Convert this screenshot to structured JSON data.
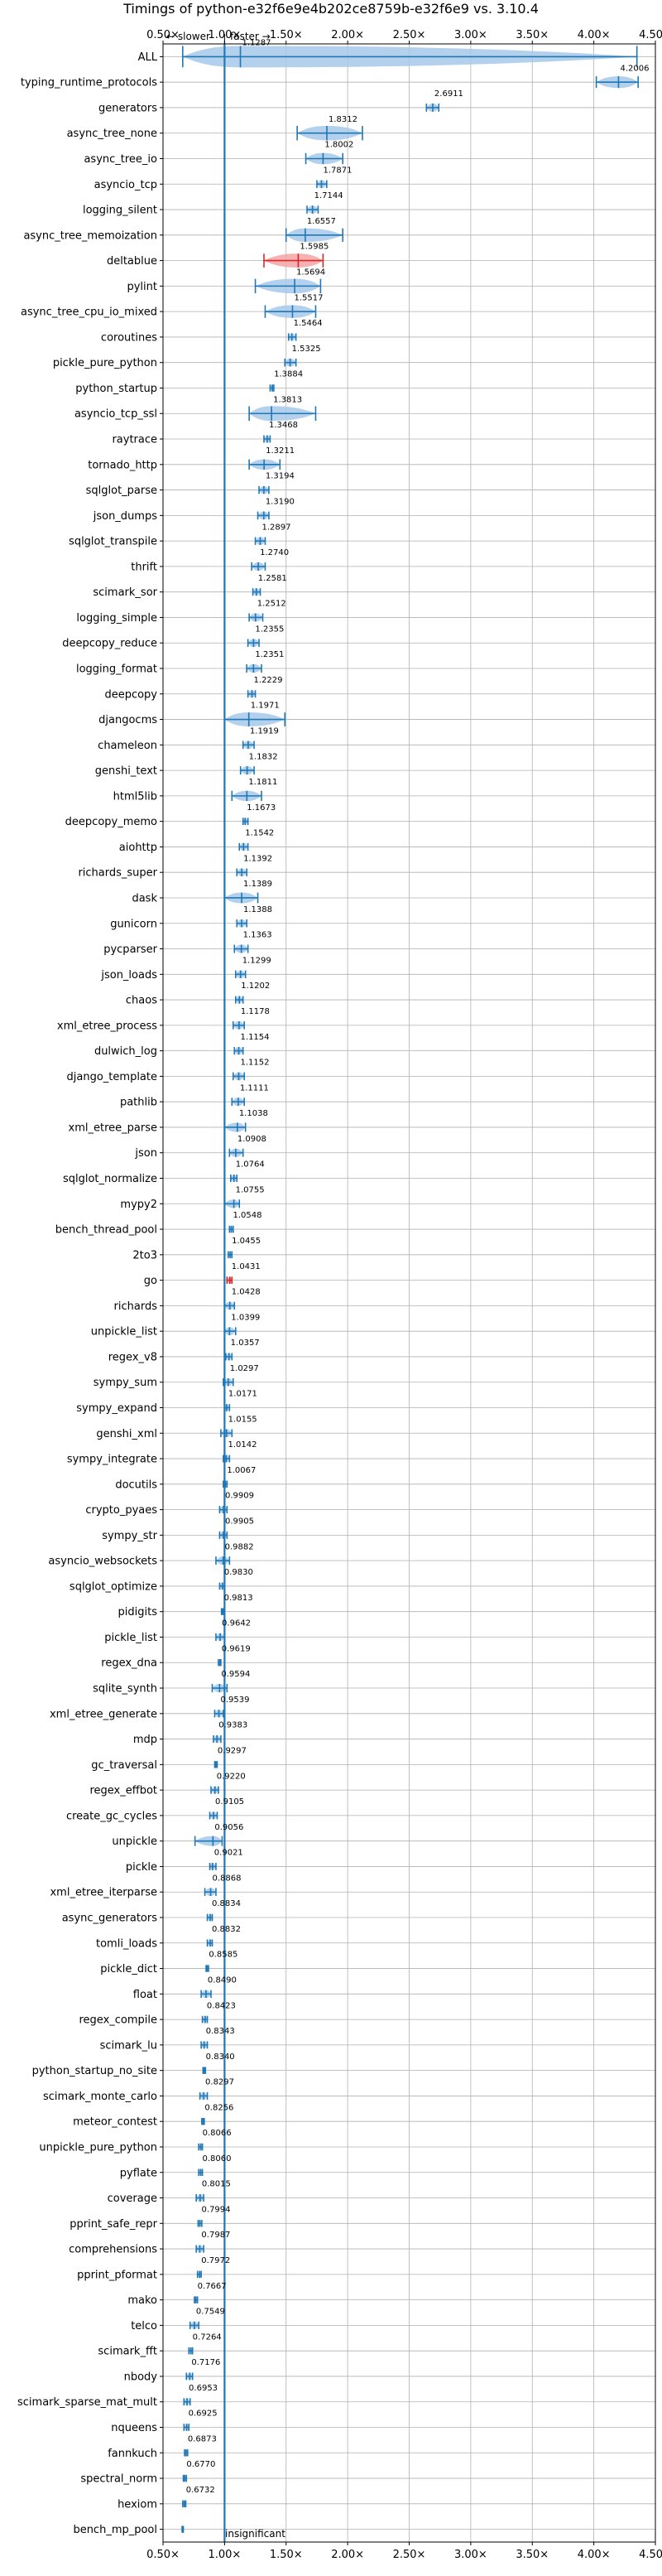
{
  "chart_data": {
    "type": "violin",
    "title": "Timings of python-e32f6e9e4b202ce8759b-e32f6e9 vs. 3.10.4",
    "xlabel": "",
    "ylabel": "",
    "xlim": [
      0.5,
      4.5
    ],
    "x_ticks": [
      0.5,
      1.0,
      1.5,
      2.0,
      2.5,
      3.0,
      3.5,
      4.0,
      4.5
    ],
    "x_tick_labels": [
      "0.50×",
      "1.00×",
      "1.50×",
      "2.00×",
      "2.50×",
      "3.00×",
      "3.50×",
      "4.00×",
      "4.50×"
    ],
    "reference_line": 1.0,
    "direction_labels": {
      "slower": "← slower",
      "faster": "faster →"
    },
    "insignificant_label": "insignificant",
    "grid": true,
    "colors": {
      "faster": "#1f77b4",
      "slower": "#d62728",
      "violin_fill": "#a6c8ea",
      "red_fill": "#f4a3a4"
    },
    "benchmarks": [
      {
        "name": "ALL",
        "median": 1.1287,
        "min": 0.66,
        "max": 4.35,
        "label": "1.1287"
      },
      {
        "name": "typing_runtime_protocols",
        "median": 4.2006,
        "min": 4.02,
        "max": 4.36,
        "label": "4.2006"
      },
      {
        "name": "generators",
        "median": 2.6911,
        "min": 2.64,
        "max": 2.74,
        "label": "2.6911"
      },
      {
        "name": "async_tree_none",
        "median": 1.8312,
        "min": 1.59,
        "max": 2.12,
        "label": "1.8312"
      },
      {
        "name": "async_tree_io",
        "median": 1.8002,
        "min": 1.66,
        "max": 1.96,
        "label": "1.8002"
      },
      {
        "name": "asyncio_tcp",
        "median": 1.7871,
        "min": 1.75,
        "max": 1.83,
        "label": "1.7871"
      },
      {
        "name": "logging_silent",
        "median": 1.7144,
        "min": 1.67,
        "max": 1.76,
        "label": "1.7144"
      },
      {
        "name": "async_tree_memoization",
        "median": 1.6557,
        "min": 1.5,
        "max": 1.96,
        "label": "1.6557"
      },
      {
        "name": "deltablue",
        "median": 1.5985,
        "min": 1.32,
        "max": 1.8,
        "label": "1.5985",
        "color": "red"
      },
      {
        "name": "pylint",
        "median": 1.5694,
        "min": 1.25,
        "max": 1.78,
        "label": "1.5694"
      },
      {
        "name": "async_tree_cpu_io_mixed",
        "median": 1.5517,
        "min": 1.33,
        "max": 1.74,
        "label": "1.5517"
      },
      {
        "name": "coroutines",
        "median": 1.5464,
        "min": 1.52,
        "max": 1.58,
        "label": "1.5464"
      },
      {
        "name": "pickle_pure_python",
        "median": 1.5325,
        "min": 1.49,
        "max": 1.58,
        "label": "1.5325"
      },
      {
        "name": "python_startup",
        "median": 1.3884,
        "min": 1.37,
        "max": 1.4,
        "label": "1.3884"
      },
      {
        "name": "asyncio_tcp_ssl",
        "median": 1.3813,
        "min": 1.2,
        "max": 1.74,
        "label": "1.3813"
      },
      {
        "name": "raytrace",
        "median": 1.3468,
        "min": 1.32,
        "max": 1.37,
        "label": "1.3468"
      },
      {
        "name": "tornado_http",
        "median": 1.3211,
        "min": 1.2,
        "max": 1.45,
        "label": "1.3211"
      },
      {
        "name": "sqlglot_parse",
        "median": 1.3194,
        "min": 1.28,
        "max": 1.36,
        "label": "1.3194"
      },
      {
        "name": "json_dumps",
        "median": 1.319,
        "min": 1.27,
        "max": 1.36,
        "label": "1.3190"
      },
      {
        "name": "sqlglot_transpile",
        "median": 1.2897,
        "min": 1.25,
        "max": 1.33,
        "label": "1.2897"
      },
      {
        "name": "thrift",
        "median": 1.274,
        "min": 1.22,
        "max": 1.33,
        "label": "1.2740"
      },
      {
        "name": "scimark_sor",
        "median": 1.2581,
        "min": 1.23,
        "max": 1.29,
        "label": "1.2581"
      },
      {
        "name": "logging_simple",
        "median": 1.2512,
        "min": 1.2,
        "max": 1.31,
        "label": "1.2512"
      },
      {
        "name": "deepcopy_reduce",
        "median": 1.2355,
        "min": 1.19,
        "max": 1.28,
        "label": "1.2355"
      },
      {
        "name": "logging_format",
        "median": 1.2351,
        "min": 1.18,
        "max": 1.3,
        "label": "1.2351"
      },
      {
        "name": "deepcopy",
        "median": 1.2229,
        "min": 1.19,
        "max": 1.25,
        "label": "1.2229"
      },
      {
        "name": "djangocms",
        "median": 1.1971,
        "min": 1.0,
        "max": 1.49,
        "label": "1.1971"
      },
      {
        "name": "chameleon",
        "median": 1.1919,
        "min": 1.15,
        "max": 1.24,
        "label": "1.1919"
      },
      {
        "name": "genshi_text",
        "median": 1.1832,
        "min": 1.13,
        "max": 1.24,
        "label": "1.1832"
      },
      {
        "name": "html5lib",
        "median": 1.1811,
        "min": 1.06,
        "max": 1.3,
        "label": "1.1811"
      },
      {
        "name": "deepcopy_memo",
        "median": 1.1673,
        "min": 1.15,
        "max": 1.19,
        "label": "1.1673"
      },
      {
        "name": "aiohttp",
        "median": 1.1542,
        "min": 1.12,
        "max": 1.19,
        "label": "1.1542"
      },
      {
        "name": "richards_super",
        "median": 1.1392,
        "min": 1.1,
        "max": 1.18,
        "label": "1.1392"
      },
      {
        "name": "dask",
        "median": 1.1389,
        "min": 1.0,
        "max": 1.27,
        "label": "1.1389"
      },
      {
        "name": "gunicorn",
        "median": 1.1388,
        "min": 1.1,
        "max": 1.18,
        "label": "1.1388"
      },
      {
        "name": "pycparser",
        "median": 1.1363,
        "min": 1.08,
        "max": 1.19,
        "label": "1.1363"
      },
      {
        "name": "json_loads",
        "median": 1.1299,
        "min": 1.09,
        "max": 1.17,
        "label": "1.1299"
      },
      {
        "name": "chaos",
        "median": 1.1202,
        "min": 1.09,
        "max": 1.15,
        "label": "1.1202"
      },
      {
        "name": "xml_etree_process",
        "median": 1.1178,
        "min": 1.07,
        "max": 1.16,
        "label": "1.1178"
      },
      {
        "name": "dulwich_log",
        "median": 1.1154,
        "min": 1.08,
        "max": 1.15,
        "label": "1.1154"
      },
      {
        "name": "django_template",
        "median": 1.1152,
        "min": 1.07,
        "max": 1.16,
        "label": "1.1152"
      },
      {
        "name": "pathlib",
        "median": 1.1111,
        "min": 1.06,
        "max": 1.16,
        "label": "1.1111"
      },
      {
        "name": "xml_etree_parse",
        "median": 1.1038,
        "min": 1.0,
        "max": 1.17,
        "label": "1.1038"
      },
      {
        "name": "json",
        "median": 1.0908,
        "min": 1.04,
        "max": 1.15,
        "label": "1.0908"
      },
      {
        "name": "sqlglot_normalize",
        "median": 1.0764,
        "min": 1.05,
        "max": 1.1,
        "label": "1.0764"
      },
      {
        "name": "mypy2",
        "median": 1.0755,
        "min": 1.0,
        "max": 1.12,
        "label": "1.0755"
      },
      {
        "name": "bench_thread_pool",
        "median": 1.0548,
        "min": 1.04,
        "max": 1.07,
        "label": "1.0548"
      },
      {
        "name": "2to3",
        "median": 1.0455,
        "min": 1.03,
        "max": 1.06,
        "label": "1.0455"
      },
      {
        "name": "go",
        "median": 1.0431,
        "min": 1.02,
        "max": 1.06,
        "label": "1.0431",
        "color": "red"
      },
      {
        "name": "richards",
        "median": 1.0428,
        "min": 1.0,
        "max": 1.08,
        "label": "1.0428"
      },
      {
        "name": "unpickle_list",
        "median": 1.0399,
        "min": 1.0,
        "max": 1.09,
        "label": "1.0399"
      },
      {
        "name": "regex_v8",
        "median": 1.0357,
        "min": 1.01,
        "max": 1.06,
        "label": "1.0357"
      },
      {
        "name": "sympy_sum",
        "median": 1.0297,
        "min": 0.99,
        "max": 1.07,
        "label": "1.0297"
      },
      {
        "name": "sympy_expand",
        "median": 1.0171,
        "min": 1.0,
        "max": 1.04,
        "label": "1.0171"
      },
      {
        "name": "genshi_xml",
        "median": 1.0155,
        "min": 0.97,
        "max": 1.06,
        "label": "1.0155"
      },
      {
        "name": "sympy_integrate",
        "median": 1.0142,
        "min": 0.99,
        "max": 1.04,
        "label": "1.0142"
      },
      {
        "name": "docutils",
        "median": 1.0067,
        "min": 0.99,
        "max": 1.02,
        "label": "1.0067"
      },
      {
        "name": "crypto_pyaes",
        "median": 0.9909,
        "min": 0.96,
        "max": 1.02,
        "label": "0.9909"
      },
      {
        "name": "sympy_str",
        "median": 0.9905,
        "min": 0.96,
        "max": 1.02,
        "label": "0.9905"
      },
      {
        "name": "asyncio_websockets",
        "median": 0.9882,
        "min": 0.93,
        "max": 1.04,
        "label": "0.9882"
      },
      {
        "name": "sqlglot_optimize",
        "median": 0.983,
        "min": 0.96,
        "max": 1.0,
        "label": "0.9830"
      },
      {
        "name": "pidigits",
        "median": 0.9813,
        "min": 0.975,
        "max": 0.99,
        "label": "0.9813"
      },
      {
        "name": "pickle_list",
        "median": 0.9642,
        "min": 0.93,
        "max": 1.0,
        "label": "0.9642"
      },
      {
        "name": "regex_dna",
        "median": 0.9619,
        "min": 0.95,
        "max": 0.97,
        "label": "0.9619"
      },
      {
        "name": "sqlite_synth",
        "median": 0.9594,
        "min": 0.9,
        "max": 1.02,
        "label": "0.9594"
      },
      {
        "name": "xml_etree_generate",
        "median": 0.9539,
        "min": 0.92,
        "max": 0.99,
        "label": "0.9539"
      },
      {
        "name": "mdp",
        "median": 0.9383,
        "min": 0.91,
        "max": 0.97,
        "label": "0.9383"
      },
      {
        "name": "gc_traversal",
        "median": 0.9297,
        "min": 0.92,
        "max": 0.94,
        "label": "0.9297"
      },
      {
        "name": "regex_effbot",
        "median": 0.922,
        "min": 0.89,
        "max": 0.95,
        "label": "0.9220"
      },
      {
        "name": "create_gc_cycles",
        "median": 0.9105,
        "min": 0.88,
        "max": 0.94,
        "label": "0.9105"
      },
      {
        "name": "unpickle",
        "median": 0.9056,
        "min": 0.76,
        "max": 0.98,
        "label": "0.9056"
      },
      {
        "name": "pickle",
        "median": 0.9021,
        "min": 0.88,
        "max": 0.93,
        "label": "0.9021"
      },
      {
        "name": "xml_etree_iterparse",
        "median": 0.8868,
        "min": 0.84,
        "max": 0.93,
        "label": "0.8868"
      },
      {
        "name": "async_generators",
        "median": 0.8834,
        "min": 0.86,
        "max": 0.9,
        "label": "0.8834"
      },
      {
        "name": "tomli_loads",
        "median": 0.8832,
        "min": 0.86,
        "max": 0.9,
        "label": "0.8832"
      },
      {
        "name": "pickle_dict",
        "median": 0.8585,
        "min": 0.85,
        "max": 0.87,
        "label": "0.8585"
      },
      {
        "name": "float",
        "median": 0.849,
        "min": 0.81,
        "max": 0.89,
        "label": "0.8490"
      },
      {
        "name": "regex_compile",
        "median": 0.8423,
        "min": 0.82,
        "max": 0.86,
        "label": "0.8423"
      },
      {
        "name": "scimark_lu",
        "median": 0.8343,
        "min": 0.81,
        "max": 0.86,
        "label": "0.8343"
      },
      {
        "name": "python_startup_no_site",
        "median": 0.834,
        "min": 0.825,
        "max": 0.845,
        "label": "0.8340"
      },
      {
        "name": "scimark_monte_carlo",
        "median": 0.8297,
        "min": 0.8,
        "max": 0.86,
        "label": "0.8297"
      },
      {
        "name": "meteor_contest",
        "median": 0.8256,
        "min": 0.815,
        "max": 0.835,
        "label": "0.8256"
      },
      {
        "name": "unpickle_pure_python",
        "median": 0.8066,
        "min": 0.79,
        "max": 0.82,
        "label": "0.8066"
      },
      {
        "name": "pyflate",
        "median": 0.806,
        "min": 0.79,
        "max": 0.82,
        "label": "0.8060"
      },
      {
        "name": "coverage",
        "median": 0.8015,
        "min": 0.77,
        "max": 0.83,
        "label": "0.8015"
      },
      {
        "name": "pprint_safe_repr",
        "median": 0.7994,
        "min": 0.785,
        "max": 0.815,
        "label": "0.7994"
      },
      {
        "name": "comprehensions",
        "median": 0.7987,
        "min": 0.77,
        "max": 0.83,
        "label": "0.7987"
      },
      {
        "name": "pprint_pformat",
        "median": 0.7972,
        "min": 0.78,
        "max": 0.81,
        "label": "0.7972"
      },
      {
        "name": "mako",
        "median": 0.7667,
        "min": 0.755,
        "max": 0.78,
        "label": "0.7667"
      },
      {
        "name": "telco",
        "median": 0.7549,
        "min": 0.72,
        "max": 0.79,
        "label": "0.7549"
      },
      {
        "name": "scimark_fft",
        "median": 0.7264,
        "min": 0.71,
        "max": 0.74,
        "label": "0.7264"
      },
      {
        "name": "nbody",
        "median": 0.7176,
        "min": 0.69,
        "max": 0.74,
        "label": "0.7176"
      },
      {
        "name": "scimark_sparse_mat_mult",
        "median": 0.6953,
        "min": 0.67,
        "max": 0.72,
        "label": "0.6953"
      },
      {
        "name": "nqueens",
        "median": 0.6925,
        "min": 0.67,
        "max": 0.71,
        "label": "0.6925"
      },
      {
        "name": "fannkuch",
        "median": 0.6873,
        "min": 0.675,
        "max": 0.7,
        "label": "0.6873"
      },
      {
        "name": "spectral_norm",
        "median": 0.677,
        "min": 0.665,
        "max": 0.69,
        "label": "0.6770"
      },
      {
        "name": "hexiom",
        "median": 0.6732,
        "min": 0.66,
        "max": 0.685,
        "label": "0.6732"
      },
      {
        "name": "bench_mp_pool",
        "median": 0.66,
        "min": 0.655,
        "max": 0.665,
        "label": "",
        "insignificant": true
      }
    ]
  }
}
